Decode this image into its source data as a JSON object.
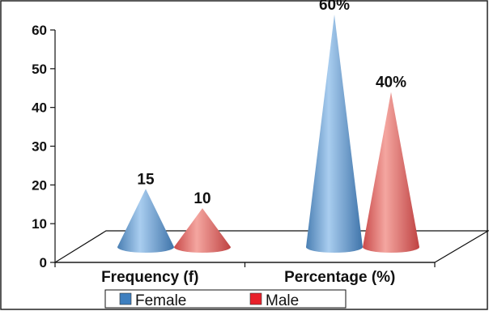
{
  "chart_data": {
    "type": "bar",
    "categories": [
      "Frequency (f)",
      "Percentage (%)"
    ],
    "series": [
      {
        "name": "Female",
        "values": [
          15,
          60
        ],
        "labels": [
          "15",
          "60%"
        ],
        "color": "#4a86c0"
      },
      {
        "name": "Male",
        "values": [
          10,
          40
        ],
        "labels": [
          "10",
          "40%"
        ],
        "color": "#e05a5a"
      }
    ],
    "ylim": [
      0,
      60
    ],
    "yticks": [
      "0",
      "10",
      "20",
      "30",
      "40",
      "50",
      "60"
    ],
    "grid": false,
    "legend_position": "bottom",
    "legend_swatch_colors": [
      "#3e7fbf",
      "#e8202a"
    ]
  }
}
